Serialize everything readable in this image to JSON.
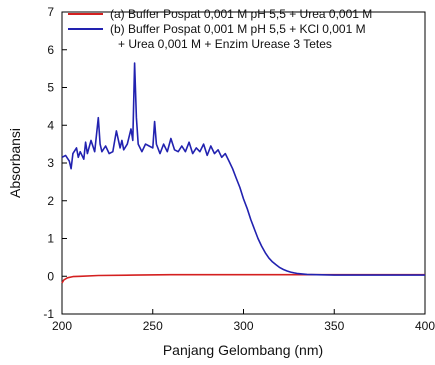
{
  "chart_data": {
    "type": "line",
    "xlabel": "Panjang Gelombang (nm)",
    "ylabel": "Absorbansi",
    "xlim": [
      200,
      400
    ],
    "ylim": [
      -1,
      7
    ],
    "xticks": [
      200,
      250,
      300,
      350,
      400
    ],
    "yticks": [
      -1,
      0,
      1,
      2,
      3,
      4,
      5,
      6,
      7
    ],
    "grid": false,
    "legend_position": "top",
    "series": [
      {
        "name": "(a) Buffer Pospat 0,001 M pH 5,5 + Urea 0,001 M",
        "legend_lines": [
          "(a) Buffer Pospat 0,001 M pH 5,5 + Urea 0,001 M"
        ],
        "color": "#d42020",
        "x": [
          200,
          201,
          203,
          206,
          210,
          220,
          240,
          260,
          300,
          350,
          400
        ],
        "y": [
          -0.18,
          -0.1,
          -0.04,
          -0.01,
          0.0,
          0.02,
          0.03,
          0.04,
          0.04,
          0.04,
          0.04
        ]
      },
      {
        "name": "(b) Buffer Pospat 0,001 M pH 5,5 + KCl 0,001 M + Urea 0,001 M + Enzim Urease 3 Tetes",
        "legend_lines": [
          "(b) Buffer Pospat 0,001 M pH 5,5 + KCl 0,001 M",
          "+ Urea 0,001 M + Enzim Urease 3 Tetes"
        ],
        "color": "#2222b0",
        "x": [
          200,
          202,
          204,
          205,
          206,
          208,
          209,
          210,
          212,
          213,
          214,
          216,
          218,
          219,
          220,
          221,
          222,
          224,
          226,
          228,
          230,
          232,
          233,
          234,
          236,
          238,
          239,
          240,
          241,
          242,
          244,
          246,
          248,
          250,
          251,
          252,
          254,
          256,
          258,
          260,
          262,
          264,
          266,
          268,
          270,
          272,
          274,
          276,
          278,
          280,
          282,
          284,
          286,
          288,
          290,
          292,
          294,
          296,
          298,
          300,
          302,
          304,
          306,
          308,
          310,
          312,
          314,
          316,
          318,
          320,
          322,
          324,
          326,
          328,
          330,
          335,
          340,
          350,
          360,
          380,
          400
        ],
        "y": [
          3.15,
          3.2,
          3.05,
          2.85,
          3.25,
          3.4,
          3.15,
          3.3,
          3.1,
          3.55,
          3.25,
          3.6,
          3.3,
          3.75,
          4.2,
          3.5,
          3.3,
          3.45,
          3.25,
          3.3,
          3.85,
          3.4,
          3.6,
          3.35,
          3.5,
          3.9,
          3.6,
          5.65,
          4.2,
          3.5,
          3.3,
          3.5,
          3.45,
          3.4,
          4.1,
          3.5,
          3.25,
          3.5,
          3.3,
          3.65,
          3.35,
          3.3,
          3.45,
          3.3,
          3.55,
          3.25,
          3.4,
          3.3,
          3.5,
          3.2,
          3.45,
          3.25,
          3.35,
          3.15,
          3.25,
          3.05,
          2.85,
          2.6,
          2.35,
          2.05,
          1.8,
          1.5,
          1.25,
          1.0,
          0.8,
          0.62,
          0.48,
          0.38,
          0.3,
          0.23,
          0.18,
          0.14,
          0.11,
          0.09,
          0.07,
          0.05,
          0.04,
          0.03,
          0.03,
          0.03,
          0.03
        ]
      }
    ]
  }
}
